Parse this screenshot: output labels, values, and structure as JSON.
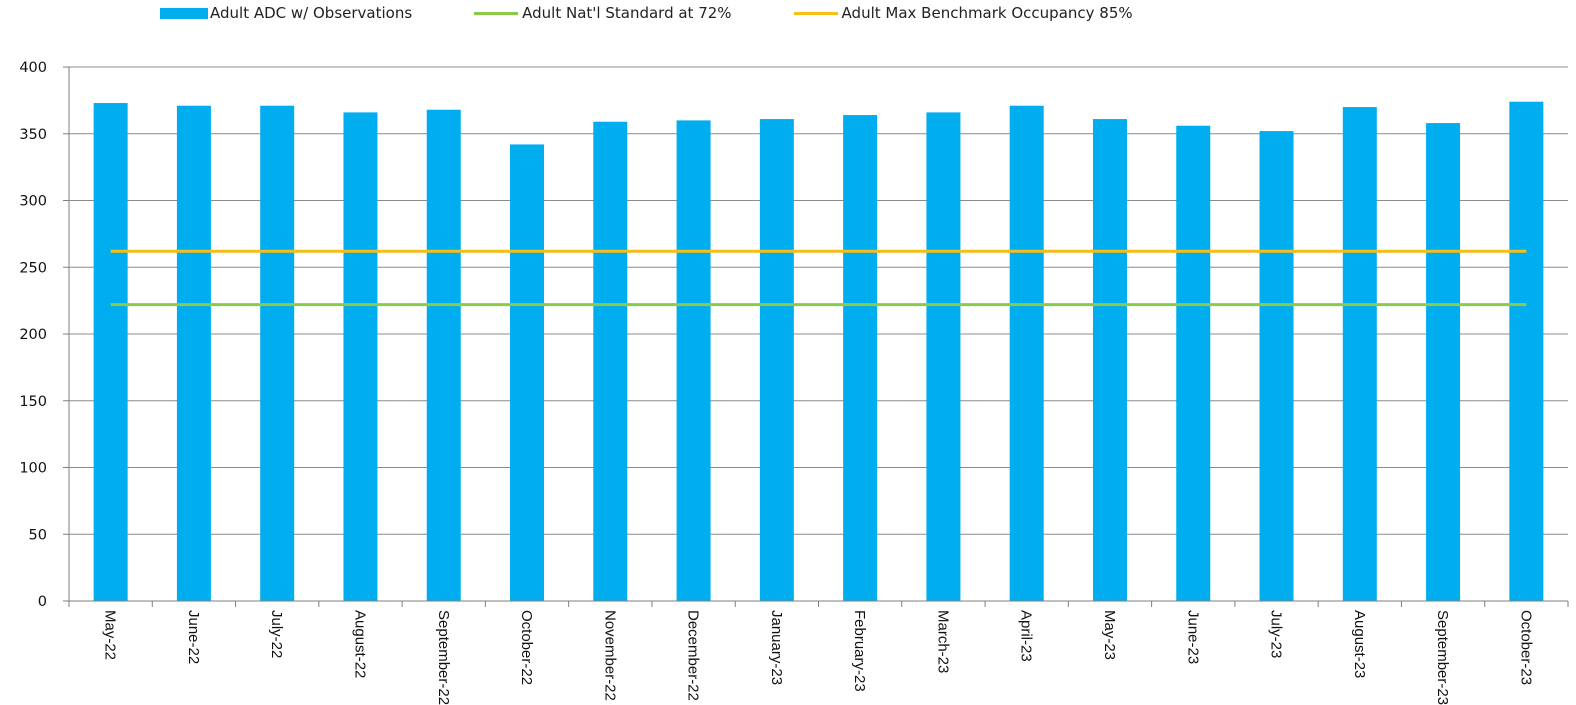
{
  "chart_data": {
    "type": "bar",
    "categories": [
      "May-22",
      "June-22",
      "July-22",
      "August-22",
      "September-22",
      "October-22",
      "November-22",
      "December-22",
      "January-23",
      "February-23",
      "March-23",
      "April-23",
      "May-23",
      "June-23",
      "July-23",
      "August-23",
      "September-23",
      "October-23"
    ],
    "series": [
      {
        "name": "Adult ADC w/ Observations",
        "type": "bar",
        "color": "#00ADEF",
        "values": [
          373,
          371,
          371,
          366,
          368,
          342,
          359,
          360,
          361,
          364,
          366,
          371,
          361,
          356,
          352,
          370,
          358,
          374
        ]
      },
      {
        "name": "Adult Nat'l Standard at 72%",
        "type": "line",
        "color": "#8CCB4A",
        "values": [
          222,
          222,
          222,
          222,
          222,
          222,
          222,
          222,
          222,
          222,
          222,
          222,
          222,
          222,
          222,
          222,
          222,
          222
        ]
      },
      {
        "name": "Adult Max Benchmark Occupancy 85%",
        "type": "line",
        "color": "#F7BE17",
        "values": [
          262,
          262,
          262,
          262,
          262,
          262,
          262,
          262,
          262,
          262,
          262,
          262,
          262,
          262,
          262,
          262,
          262,
          262
        ]
      }
    ],
    "title": "",
    "xlabel": "",
    "ylabel": "",
    "ylim": [
      0,
      400
    ],
    "yticks": [
      0,
      50,
      100,
      150,
      200,
      250,
      300,
      350,
      400
    ],
    "grid": "horizontal",
    "legend_position": "top"
  }
}
